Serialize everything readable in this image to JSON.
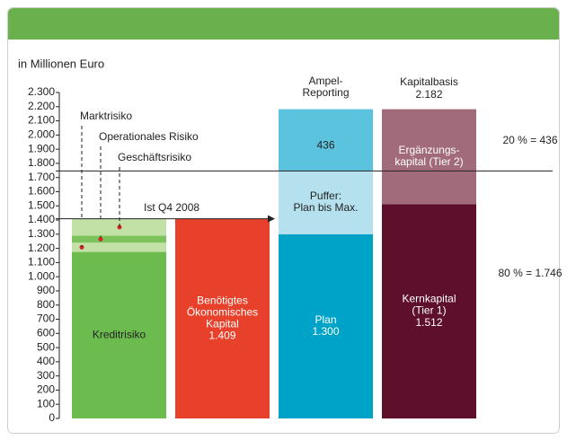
{
  "chart_data": {
    "type": "stacked_bar",
    "unit_label": "in Millionen Euro",
    "ylim": [
      0,
      2300
    ],
    "yticks": [
      0,
      100,
      200,
      300,
      400,
      500,
      600,
      700,
      800,
      900,
      {
        "value": 1000,
        "label": "1.000"
      },
      {
        "value": 1100,
        "label": "1.100"
      },
      {
        "value": 1200,
        "label": "1.200"
      },
      {
        "value": 1300,
        "label": "1.300"
      },
      {
        "value": 1400,
        "label": "1.400"
      },
      {
        "value": 1500,
        "label": "1.500"
      },
      {
        "value": 1600,
        "label": "1.600"
      },
      {
        "value": 1700,
        "label": "1.700"
      },
      {
        "value": 1800,
        "label": "1.800"
      },
      {
        "value": 1900,
        "label": "1.900"
      },
      {
        "value": 2000,
        "label": "2.000"
      },
      {
        "value": 2100,
        "label": "2.100"
      },
      {
        "value": 2200,
        "label": "2.200"
      },
      {
        "value": 2300,
        "label": "2.300"
      }
    ],
    "bars": [
      {
        "segments": [
          {
            "name": "Kreditrisiko",
            "value": 1175,
            "color": "#6cbb4f"
          },
          {
            "name": "Marktrisiko",
            "value": 65,
            "color": "#c2e1a6",
            "callout": true
          },
          {
            "name": "Operationales Risiko",
            "value": 50,
            "color": "#7dc35c",
            "callout": true
          },
          {
            "name": "Geschäftsrisiko",
            "value": 119,
            "color": "#c2e1a6",
            "callout": true
          }
        ]
      },
      {
        "segments": [
          {
            "name": "Benötigtes\nÖkonomisches\nKapital",
            "value": 1409,
            "value_label": "1.409",
            "color": "#e8412b"
          }
        ]
      },
      {
        "header": "Ampel-\nReporting",
        "segments": [
          {
            "name": "Plan",
            "value": 1300,
            "value_label": "1.300",
            "color": "#00a3c8"
          },
          {
            "name": "Puffer:\nPlan bis Max.",
            "value": 446,
            "color": "#b5e1ee"
          },
          {
            "value": 436,
            "color": "#5cc3de"
          }
        ]
      },
      {
        "header": "Kapitalbasis",
        "total": 2182,
        "total_label": "2.182",
        "segments": [
          {
            "name": "Kernkapital\n(Tier 1)",
            "value": 1512,
            "value_label": "1.512",
            "color": "#5e0f2c"
          },
          {
            "name": "Ergänzungs-\nkapital (Tier 2)",
            "value": 670,
            "color": "#a26b7c"
          }
        ]
      }
    ],
    "reference_lines": [
      {
        "value": 1409,
        "label": "Ist Q4 2008",
        "arrow": true
      },
      {
        "value": 1746
      }
    ],
    "annotations": [
      "20 % = 436",
      "80 % = 1.746"
    ]
  }
}
